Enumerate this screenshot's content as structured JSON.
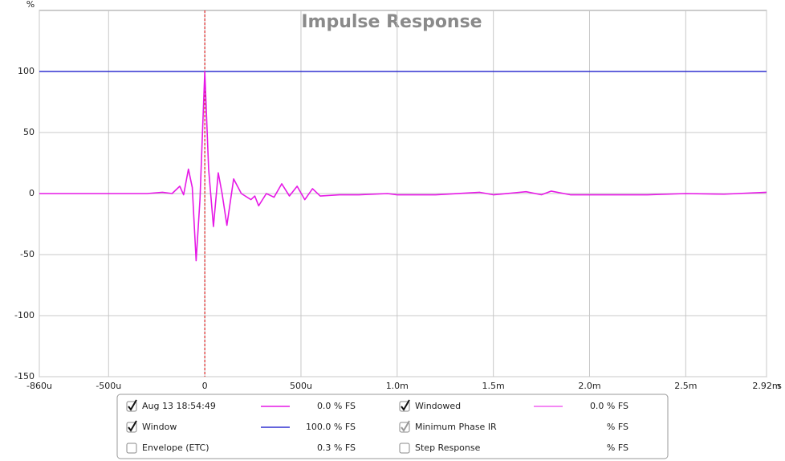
{
  "chart_data": {
    "type": "line",
    "title": "Impulse Response",
    "y_label": "%",
    "x_label": "s",
    "xlim": [
      -0.86,
      2.92
    ],
    "ylim": [
      -150,
      150
    ],
    "xticks": [
      {
        "value": -0.86,
        "label": "-860u"
      },
      {
        "value": -0.5,
        "label": "-500u"
      },
      0,
      {
        "value": 0.5,
        "label": "500u"
      },
      {
        "value": 1.0,
        "label": "1.0m"
      },
      {
        "value": 1.5,
        "label": "1.5m"
      },
      {
        "value": 2.0,
        "label": "2.0m"
      },
      {
        "value": 2.5,
        "label": "2.5m"
      },
      {
        "value": 2.92,
        "label": "2.92m"
      }
    ],
    "yticks": [
      -150,
      -100,
      -50,
      0,
      50,
      100
    ],
    "grid": true,
    "x": [
      -0.86,
      -0.3,
      -0.22,
      -0.17,
      -0.13,
      -0.11,
      -0.085,
      -0.065,
      -0.045,
      -0.025,
      0,
      0.02,
      0.045,
      0.07,
      0.09,
      0.115,
      0.15,
      0.19,
      0.24,
      0.26,
      0.28,
      0.32,
      0.36,
      0.4,
      0.44,
      0.48,
      0.52,
      0.56,
      0.6,
      0.7,
      0.8,
      0.95,
      1.0,
      1.2,
      1.43,
      1.5,
      1.67,
      1.75,
      1.8,
      1.9,
      2.0,
      2.1,
      2.3,
      2.5,
      2.7,
      2.92
    ],
    "series": [
      {
        "color": "#e619e6",
        "values": [
          0,
          0,
          1,
          0,
          6,
          -1,
          20,
          5,
          -55,
          -5,
          100,
          20,
          -27,
          17,
          0,
          -26,
          12,
          0,
          -5,
          -2,
          -10,
          0,
          -3,
          8,
          -2,
          6,
          -5,
          4,
          -2,
          -1,
          -1,
          0,
          -1,
          -1,
          1,
          -1,
          1.5,
          -1,
          2,
          -1,
          -1,
          -1,
          -1,
          0,
          -0.5,
          1
        ]
      }
    ],
    "reference_lines": [
      {
        "value": 100,
        "color": "#3030d0"
      }
    ],
    "marker_line": {
      "value": 0,
      "color": "#e00000"
    },
    "legend": [
      {
        "label": "Aug 13 18:54:49",
        "value_text": "0.0 % FS",
        "checked": true,
        "color": "#b0208f",
        "line_color": "#e619e6"
      },
      {
        "label": "Windowed",
        "value_text": "0.0 % FS",
        "checked": true,
        "color": "#d020c0",
        "line_color": "#f060f0"
      },
      {
        "label": "Window",
        "value_text": "100.0 % FS",
        "checked": true,
        "color": "#1a1aa0",
        "line_color": "#3030d0"
      },
      {
        "label": "Minimum Phase IR",
        "value_text": "% FS",
        "checked": true,
        "disabled": true,
        "color": "#888888"
      },
      {
        "label": "Envelope (ETC)",
        "value_text": "0.3 % FS",
        "checked": false,
        "color": "#8a2090"
      },
      {
        "label": "Step Response",
        "value_text": "% FS",
        "checked": false,
        "color": "#501050"
      }
    ]
  }
}
